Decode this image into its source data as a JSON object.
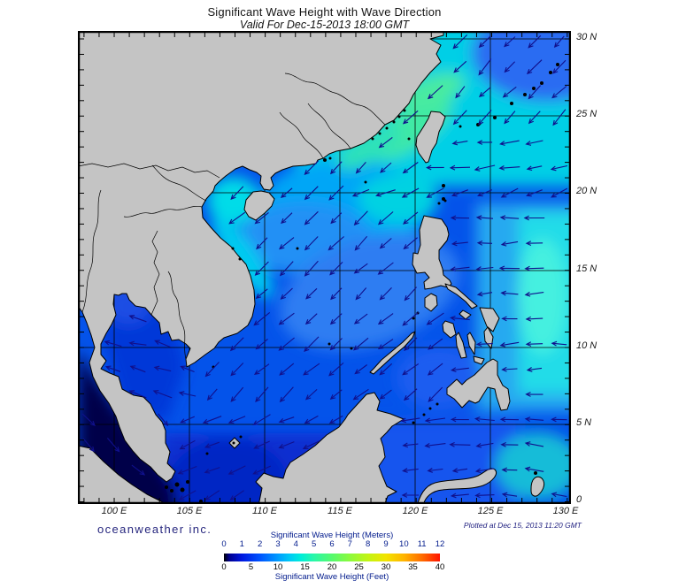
{
  "header": {
    "title": "Significant Wave Height with Wave Direction",
    "subtitle": "Valid For Dec-15-2013 18:00 GMT"
  },
  "branding": {
    "logo_text": "oceanweather inc.",
    "plotted_text": "Plotted at Dec 15, 2013 11:20 GMT"
  },
  "axes": {
    "lon_labels": [
      "100 E",
      "105 E",
      "110 E",
      "115 E",
      "120 E",
      "125 E",
      "130 E"
    ],
    "lat_labels": [
      "30 N",
      "25 N",
      "20 N",
      "15 N",
      "10 N",
      "5 N",
      "0"
    ]
  },
  "legend": {
    "meters_label": "Significant Wave Height (Meters)",
    "feet_label": "Significant Wave Height (Feet)",
    "meters_ticks": [
      "0",
      "1",
      "2",
      "3",
      "4",
      "5",
      "6",
      "7",
      "8",
      "9",
      "10",
      "11",
      "12"
    ],
    "feet_ticks": [
      "0",
      "5",
      "10",
      "15",
      "20",
      "25",
      "30",
      "35",
      "40"
    ],
    "label_color": "#001a8c",
    "meters_tick_color": "#001a8c",
    "feet_tick_color": "#000000",
    "gradient_stops": [
      {
        "value_m": 0,
        "color": "#000000"
      },
      {
        "value_m": 0.3,
        "color": "#000090"
      },
      {
        "value_m": 1,
        "color": "#0018e0"
      },
      {
        "value_m": 2,
        "color": "#0054ff"
      },
      {
        "value_m": 3,
        "color": "#009cff"
      },
      {
        "value_m": 3.7,
        "color": "#00ccf4"
      },
      {
        "value_m": 4.3,
        "color": "#00eed8"
      },
      {
        "value_m": 5,
        "color": "#2af7a8"
      },
      {
        "value_m": 6,
        "color": "#55fa6e"
      },
      {
        "value_m": 7,
        "color": "#8cfa3c"
      },
      {
        "value_m": 8,
        "color": "#c2f414"
      },
      {
        "value_m": 9,
        "color": "#f2e400"
      },
      {
        "value_m": 10,
        "color": "#ffb400"
      },
      {
        "value_m": 11,
        "color": "#ff6c00"
      },
      {
        "value_m": 12,
        "color": "#ff1400"
      }
    ]
  },
  "chart_data": {
    "type": "heatmap",
    "title": "Significant Wave Height with Wave Direction",
    "valid_time": "Dec-15-2013 18:00 GMT",
    "plotted_time": "Dec 15, 2013 11:20 GMT",
    "lon_range_deg_e": [
      97.6,
      130.4
    ],
    "lat_range_deg_n": [
      -0.3,
      30.5
    ],
    "grid_interval_deg": 5,
    "units": [
      "meters",
      "feet"
    ],
    "colorbar": {
      "min_m": 0,
      "max_m": 12,
      "min_ft": 0,
      "max_ft": 40
    },
    "land_color": "#c4c4c4",
    "coast_color": "#000000",
    "arrow_color": "#10108c",
    "wave_height_regions": [
      {
        "name": "south-china-sea-base",
        "height_m": 2.5,
        "color": "#0453ea"
      },
      {
        "name": "east-china-sea",
        "height_m": 3.5,
        "color": "#00cfe6"
      },
      {
        "name": "northeast-corner",
        "height_m": 2.5,
        "color": "#2b6cf2"
      },
      {
        "name": "taiwan-strait",
        "height_m": 4.5,
        "color": "#3fe9a4"
      },
      {
        "name": "north-of-taiwan",
        "height_m": 4.5,
        "color": "#49eba0"
      },
      {
        "name": "southwest-of-strait",
        "height_m": 4.0,
        "color": "#2fe2b8"
      },
      {
        "name": "gulf-of-tonkin",
        "height_m": 3.5,
        "color": "#00dce8"
      },
      {
        "name": "vietnam-coast",
        "height_m": 3.5,
        "color": "#00ccf0"
      },
      {
        "name": "north-scs",
        "height_m": 3.0,
        "color": "#00a6f6"
      },
      {
        "name": "north-scs-west",
        "height_m": 2.8,
        "color": "#2090f5"
      },
      {
        "name": "west-of-luzon",
        "height_m": 3.5,
        "color": "#00d2e2"
      },
      {
        "name": "central-scs",
        "height_m": 2.8,
        "color": "#2f7df2"
      },
      {
        "name": "philippine-sea",
        "height_m": 2.5,
        "color": "#28a9f0"
      },
      {
        "name": "philippine-sea-band",
        "height_m": 3.2,
        "color": "#22dce8"
      },
      {
        "name": "philippine-sea-east",
        "height_m": 3.8,
        "color": "#45f0e0"
      },
      {
        "name": "gulf-of-thailand",
        "height_m": 1.5,
        "color": "#0637d8"
      },
      {
        "name": "upper-gulf",
        "height_m": 1.8,
        "color": "#1b4de4"
      },
      {
        "name": "south-scs",
        "height_m": 1.2,
        "color": "#0a2fd0"
      },
      {
        "name": "karimata-strait",
        "height_m": 1.0,
        "color": "#0628c4"
      },
      {
        "name": "malacca-andaman",
        "height_m": 0.2,
        "color": "#00004a"
      },
      {
        "name": "sulu-sea",
        "height_m": 2.0,
        "color": "#1b5df0"
      },
      {
        "name": "celebes-sea",
        "height_m": 2.2,
        "color": "#1254ee"
      },
      {
        "name": "near-halmahera",
        "height_m": 2.8,
        "color": "#18bcd8"
      }
    ],
    "wave_direction_field": [
      {
        "name": "taiwan-east",
        "lon": [
          121.3,
          130.4
        ],
        "lat": [
          20.8,
          24.6
        ],
        "toward_deg": 262
      },
      {
        "name": "luzon-strait",
        "lon": [
          116.0,
          130.4
        ],
        "lat": [
          18.5,
          21.2
        ],
        "toward_deg": 245
      },
      {
        "name": "north-china-coast",
        "lon": [
          97.0,
          130.4
        ],
        "lat": [
          24.0,
          31.0
        ],
        "toward_deg": 225
      },
      {
        "name": "philippine-sea",
        "lon": [
          122.0,
          130.4
        ],
        "lat": [
          5.8,
          18.5
        ],
        "toward_deg": 268
      },
      {
        "name": "gulf-of-thailand",
        "lon": [
          97.0,
          105.6
        ],
        "lat": [
          5.5,
          14.0
        ],
        "toward_deg": 285
      },
      {
        "name": "malacca-strait",
        "lon": [
          97.0,
          104.5
        ],
        "lat": [
          -0.5,
          5.5
        ],
        "toward_deg": 135
      },
      {
        "name": "south-scs",
        "lon": [
          104.0,
          117.6
        ],
        "lat": [
          -0.5,
          6.0
        ],
        "toward_deg": 243
      },
      {
        "name": "celebes-sea",
        "lon": [
          117.6,
          125.2
        ],
        "lat": [
          -0.5,
          6.0
        ],
        "toward_deg": 268
      },
      {
        "name": "southeast-corner",
        "lon": [
          125.2,
          130.4
        ],
        "lat": [
          -0.5,
          6.0
        ],
        "toward_deg": 278
      },
      {
        "name": "central-scs",
        "lon": [
          104.0,
          122.0
        ],
        "lat": [
          6.0,
          24.0
        ],
        "toward_deg": 228
      }
    ]
  }
}
